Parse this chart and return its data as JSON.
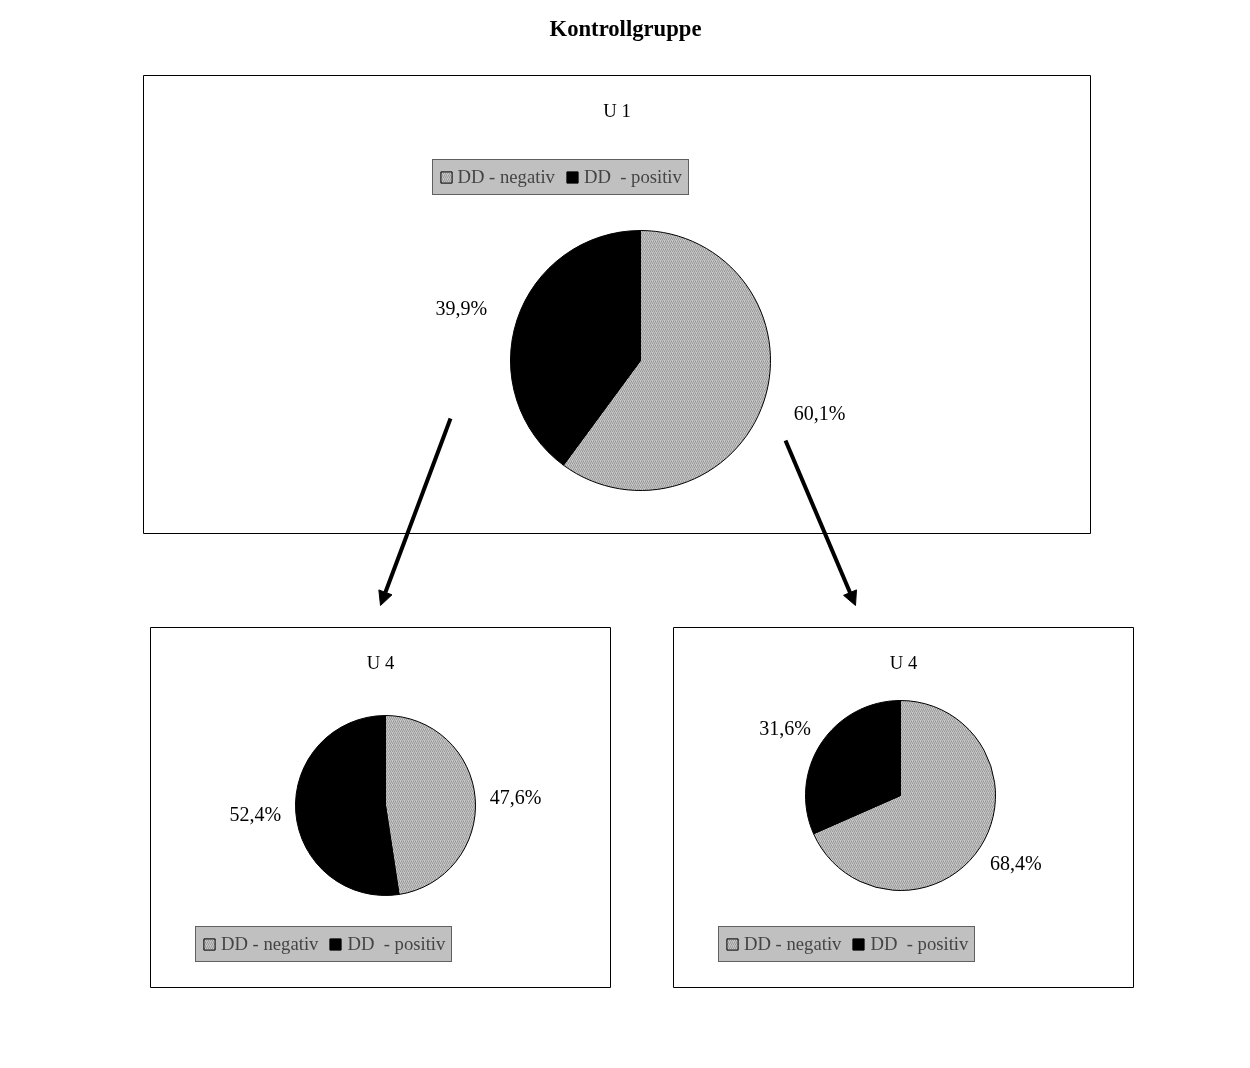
{
  "chart_data": [
    {
      "type": "pie",
      "title": "U 1",
      "annotations": [
        "Kontrollgruppe"
      ],
      "categories": [
        "DD - negativ",
        "DD  - positiv"
      ],
      "values": [
        60.1,
        39.9
      ],
      "value_labels": [
        "60,1%",
        "39,9%"
      ],
      "colors": [
        "#c8c8c8",
        "#000000"
      ],
      "legend": "top"
    },
    {
      "type": "pie",
      "title": "U 4",
      "categories": [
        "DD - negativ",
        "DD  - positiv"
      ],
      "values": [
        47.6,
        52.4
      ],
      "value_labels": [
        "47,6%",
        "52,4%"
      ],
      "colors": [
        "#c8c8c8",
        "#000000"
      ],
      "legend": "bottom"
    },
    {
      "type": "pie",
      "title": "U 4",
      "categories": [
        "DD - negativ",
        "DD  - positiv"
      ],
      "values": [
        68.4,
        31.6
      ],
      "value_labels": [
        "68,4%",
        "31,6%"
      ],
      "colors": [
        "#c8c8c8",
        "#000000"
      ],
      "legend": "bottom"
    }
  ]
}
